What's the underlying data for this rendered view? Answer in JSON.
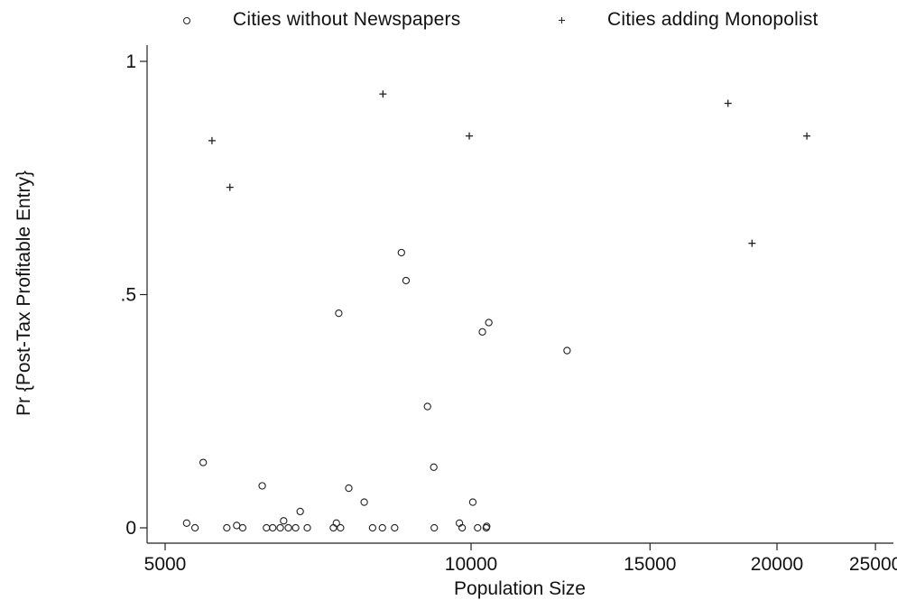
{
  "chart_data": {
    "type": "scatter",
    "title": "",
    "xlabel": "Population Size",
    "ylabel": "Pr {Post-Tax Profitable Entry}",
    "xscale": "log",
    "xlim": [
      4800,
      26000
    ],
    "ylim": [
      0,
      1
    ],
    "x_ticks": [
      5000,
      10000,
      15000,
      20000,
      25000
    ],
    "x_tick_labels": [
      "5000",
      "10000",
      "15000",
      "20000",
      "25000"
    ],
    "y_ticks": [
      0,
      0.5,
      1
    ],
    "y_tick_labels": [
      "0",
      ".5",
      "1"
    ],
    "grid": false,
    "legend_position": "top",
    "series": [
      {
        "name": "Cities without Newspapers",
        "marker": "circle",
        "color": "#222222",
        "points": [
          {
            "x": 5250,
            "y": 0.01
          },
          {
            "x": 5350,
            "y": 0.0
          },
          {
            "x": 5450,
            "y": 0.14
          },
          {
            "x": 5750,
            "y": 0.0
          },
          {
            "x": 5880,
            "y": 0.005
          },
          {
            "x": 5960,
            "y": 0.0
          },
          {
            "x": 6230,
            "y": 0.09
          },
          {
            "x": 6290,
            "y": 0.0
          },
          {
            "x": 6380,
            "y": 0.0
          },
          {
            "x": 6490,
            "y": 0.0
          },
          {
            "x": 6540,
            "y": 0.015
          },
          {
            "x": 6610,
            "y": 0.0
          },
          {
            "x": 6720,
            "y": 0.0
          },
          {
            "x": 6790,
            "y": 0.035
          },
          {
            "x": 6900,
            "y": 0.0
          },
          {
            "x": 7320,
            "y": 0.0
          },
          {
            "x": 7370,
            "y": 0.01
          },
          {
            "x": 7410,
            "y": 0.46
          },
          {
            "x": 7440,
            "y": 0.0
          },
          {
            "x": 7580,
            "y": 0.085
          },
          {
            "x": 7850,
            "y": 0.055
          },
          {
            "x": 8000,
            "y": 0.0
          },
          {
            "x": 8180,
            "y": 0.0
          },
          {
            "x": 8410,
            "y": 0.0
          },
          {
            "x": 8540,
            "y": 0.59
          },
          {
            "x": 8630,
            "y": 0.53
          },
          {
            "x": 9060,
            "y": 0.26
          },
          {
            "x": 9190,
            "y": 0.13
          },
          {
            "x": 9200,
            "y": 0.0
          },
          {
            "x": 9740,
            "y": 0.01
          },
          {
            "x": 9800,
            "y": 0.0
          },
          {
            "x": 10040,
            "y": 0.055
          },
          {
            "x": 10150,
            "y": 0.0
          },
          {
            "x": 10260,
            "y": 0.42
          },
          {
            "x": 10350,
            "y": 0.0
          },
          {
            "x": 10360,
            "y": 0.003
          },
          {
            "x": 10410,
            "y": 0.44
          },
          {
            "x": 12430,
            "y": 0.38
          }
        ]
      },
      {
        "name": "Cities adding Monopolist",
        "marker": "plus",
        "color": "#222222",
        "points": [
          {
            "x": 5560,
            "y": 0.83
          },
          {
            "x": 5790,
            "y": 0.73
          },
          {
            "x": 8190,
            "y": 0.93
          },
          {
            "x": 9960,
            "y": 0.84
          },
          {
            "x": 17900,
            "y": 0.91
          },
          {
            "x": 18900,
            "y": 0.61
          },
          {
            "x": 21400,
            "y": 0.84
          }
        ]
      }
    ]
  }
}
